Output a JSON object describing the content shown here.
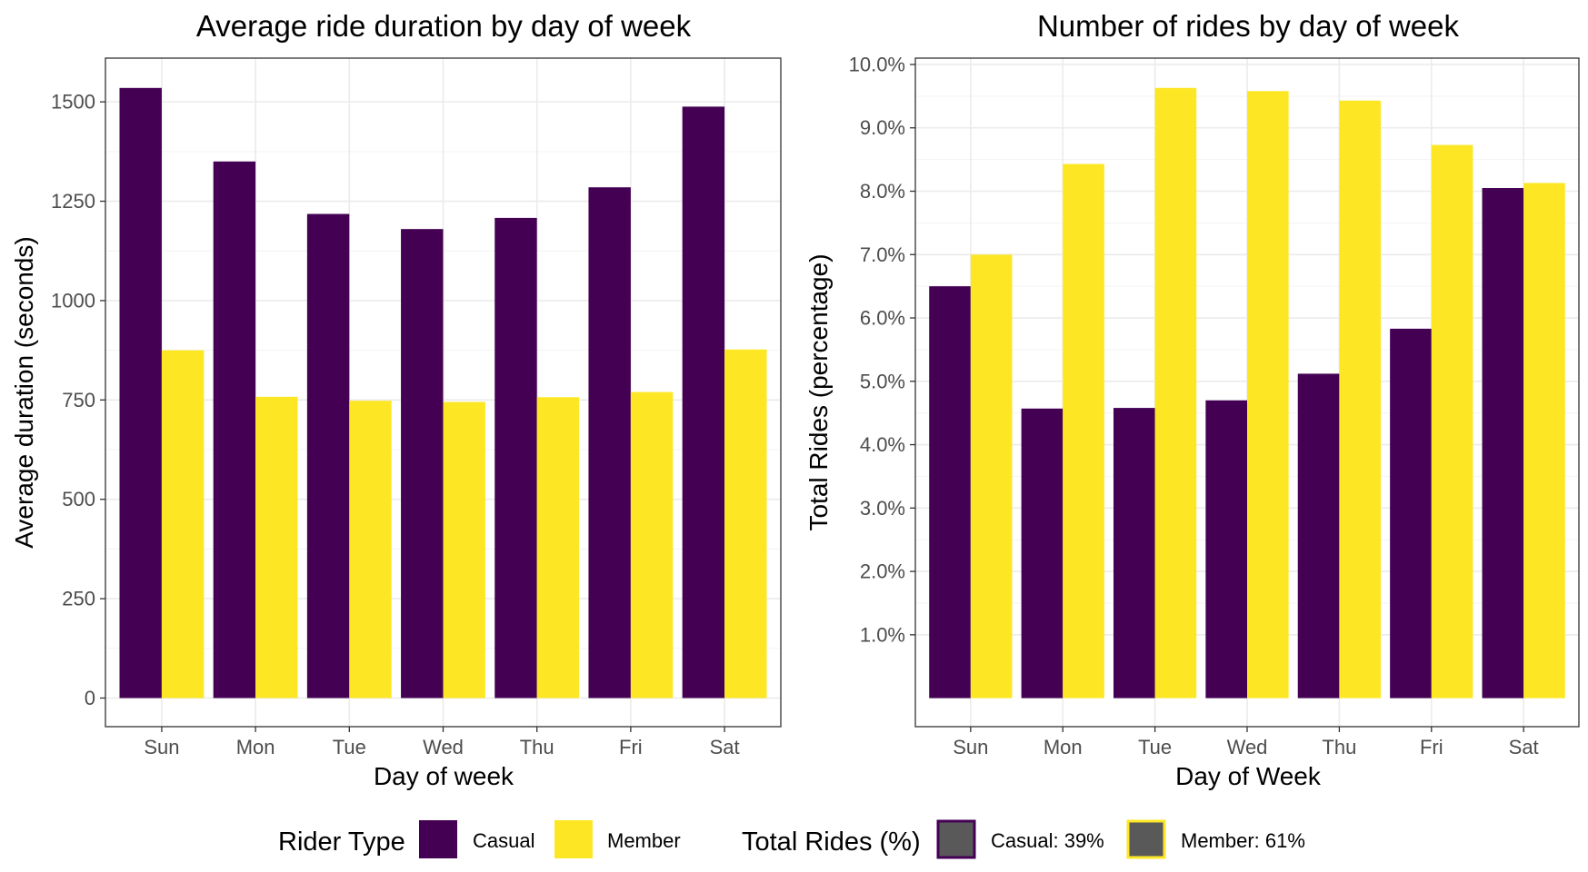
{
  "colors": {
    "casual": "#440154",
    "member": "#FDE725",
    "legend_fill": "#595959"
  },
  "chart_data": [
    {
      "type": "bar",
      "title": "Average ride duration by day of week",
      "xlabel": "Day of week",
      "ylabel": "Average duration (seconds)",
      "categories": [
        "Sun",
        "Mon",
        "Tue",
        "Wed",
        "Thu",
        "Fri",
        "Sat"
      ],
      "ylim": [
        -72,
        1610
      ],
      "yticks": [
        0,
        250,
        500,
        750,
        1000,
        1250,
        1500
      ],
      "ytick_labels": [
        "0",
        "250",
        "500",
        "750",
        "1000",
        "1250",
        "1500"
      ],
      "grid": true,
      "series": [
        {
          "name": "Casual",
          "values": [
            1535,
            1350,
            1218,
            1180,
            1208,
            1285,
            1488
          ]
        },
        {
          "name": "Member",
          "values": [
            875,
            758,
            748,
            745,
            757,
            770,
            877
          ]
        }
      ]
    },
    {
      "type": "bar",
      "title": "Number of rides by day of week",
      "xlabel": "Day of Week",
      "ylabel": "Total Rides (percentage)",
      "categories": [
        "Sun",
        "Mon",
        "Tue",
        "Wed",
        "Thu",
        "Fri",
        "Sat"
      ],
      "ylim": [
        -0.45,
        10.1
      ],
      "yticks": [
        1,
        2,
        3,
        4,
        5,
        6,
        7,
        8,
        9,
        10
      ],
      "ytick_labels": [
        "1.0%",
        "2.0%",
        "3.0%",
        "4.0%",
        "5.0%",
        "6.0%",
        "7.0%",
        "8.0%",
        "9.0%",
        "10.0%"
      ],
      "grid": true,
      "series": [
        {
          "name": "Casual",
          "values": [
            6.5,
            4.57,
            4.58,
            4.7,
            5.12,
            5.83,
            8.05
          ]
        },
        {
          "name": "Member",
          "values": [
            7.0,
            8.43,
            9.63,
            9.58,
            9.43,
            8.73,
            8.13
          ]
        }
      ]
    }
  ],
  "legend": {
    "placement": "bottom",
    "rider_type_title": "Rider Type",
    "rider_type_items": [
      "Casual",
      "Member"
    ],
    "total_rides_title": "Total Rides (%)",
    "total_rides_items": [
      "Casual: 39%",
      "Member: 61%"
    ]
  }
}
